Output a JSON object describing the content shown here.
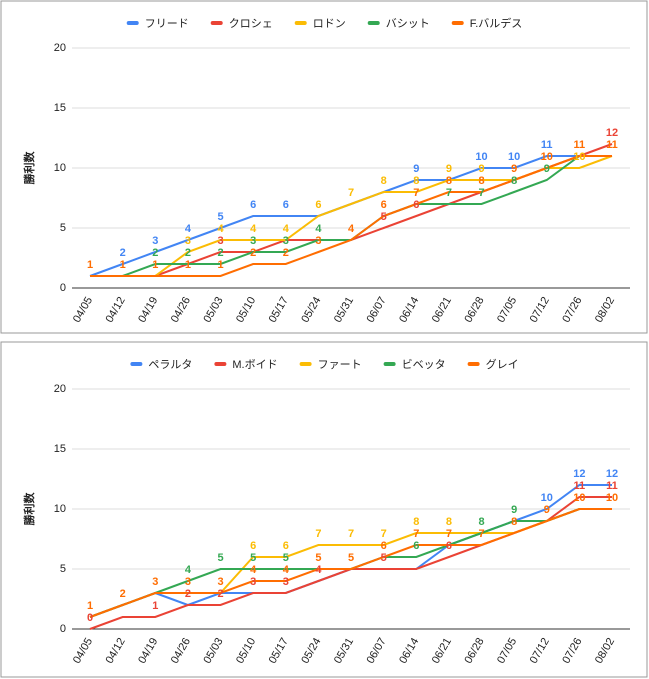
{
  "chart_data": [
    {
      "type": "line",
      "y_label": "勝利数",
      "categories": [
        "04/05",
        "04/12",
        "04/19",
        "04/26",
        "05/03",
        "05/10",
        "05/17",
        "05/24",
        "05/31",
        "06/07",
        "06/14",
        "06/21",
        "06/28",
        "07/05",
        "07/12",
        "07/26",
        "08/02"
      ],
      "ylim": [
        0,
        20
      ],
      "yticks": [
        0,
        5,
        10,
        15,
        20
      ],
      "grid": true,
      "legend": "top",
      "series": [
        {
          "name": "フリード",
          "color": "#4285f4",
          "values": [
            1,
            2,
            3,
            4,
            5,
            6,
            6,
            6,
            7,
            8,
            9,
            9,
            10,
            10,
            11,
            11,
            11
          ],
          "value_labels": [
            null,
            "2",
            "3",
            "4",
            "5",
            "6",
            "6",
            null,
            null,
            null,
            "9",
            null,
            "10",
            "10",
            "11",
            null,
            null
          ]
        },
        {
          "name": "クロシェ",
          "color": "#ea4335",
          "values": [
            1,
            1,
            1,
            2,
            3,
            3,
            4,
            4,
            4,
            5,
            6,
            7,
            8,
            9,
            10,
            11,
            12
          ],
          "value_labels": [
            null,
            null,
            null,
            null,
            "3",
            null,
            null,
            null,
            null,
            "5",
            "6",
            null,
            null,
            null,
            null,
            null,
            "12"
          ]
        },
        {
          "name": "ロドン",
          "color": "#fbbc04",
          "values": [
            1,
            1,
            1,
            3,
            4,
            4,
            4,
            6,
            7,
            8,
            8,
            9,
            9,
            9,
            10,
            10,
            11
          ],
          "value_labels": [
            null,
            null,
            null,
            "3",
            "4",
            "4",
            "4",
            "6",
            "7",
            "8",
            "8",
            "9",
            "9",
            null,
            null,
            "10",
            null
          ]
        },
        {
          "name": "バシット",
          "color": "#34a853",
          "values": [
            1,
            1,
            2,
            2,
            2,
            3,
            3,
            4,
            4,
            6,
            7,
            7,
            7,
            8,
            9,
            11,
            11
          ],
          "value_labels": [
            null,
            null,
            "2",
            "2",
            "2",
            "3",
            "3",
            "4",
            null,
            null,
            null,
            "7",
            "7",
            "8",
            "9",
            null,
            null
          ]
        },
        {
          "name": "F.バルデス",
          "color": "#ff6d01",
          "values": [
            1,
            1,
            1,
            1,
            1,
            2,
            2,
            3,
            4,
            6,
            7,
            8,
            8,
            9,
            10,
            11,
            11
          ],
          "value_labels": [
            "1",
            "1",
            "1",
            "1",
            "1",
            "2",
            "2",
            "3",
            "4",
            "6",
            "7",
            "8",
            "8",
            "9",
            "10",
            "11",
            "11"
          ]
        }
      ]
    },
    {
      "type": "line",
      "y_label": "勝利数",
      "categories": [
        "04/05",
        "04/12",
        "04/19",
        "04/26",
        "05/03",
        "05/10",
        "05/17",
        "05/24",
        "05/31",
        "06/07",
        "06/14",
        "06/21",
        "06/28",
        "07/05",
        "07/12",
        "07/26",
        "08/02"
      ],
      "ylim": [
        0,
        20
      ],
      "yticks": [
        0,
        5,
        10,
        15,
        20
      ],
      "grid": true,
      "legend": "top",
      "series": [
        {
          "name": "ペラルタ",
          "color": "#4285f4",
          "values": [
            1,
            2,
            3,
            2,
            3,
            3,
            3,
            4,
            5,
            5,
            5,
            7,
            8,
            9,
            10,
            12,
            12
          ],
          "value_labels": [
            null,
            null,
            null,
            null,
            null,
            null,
            null,
            null,
            null,
            null,
            null,
            null,
            null,
            null,
            "10",
            "12",
            "12"
          ]
        },
        {
          "name": "M.ボイド",
          "color": "#ea4335",
          "values": [
            0,
            1,
            1,
            2,
            2,
            3,
            3,
            4,
            5,
            5,
            5,
            6,
            7,
            8,
            9,
            11,
            11
          ],
          "value_labels": [
            "0",
            null,
            "1",
            "2",
            "2",
            "3",
            "3",
            "4",
            null,
            "5",
            null,
            "6",
            null,
            null,
            null,
            "11",
            "11"
          ]
        },
        {
          "name": "ファート",
          "color": "#fbbc04",
          "values": [
            1,
            2,
            3,
            3,
            3,
            6,
            6,
            7,
            7,
            7,
            8,
            8,
            8,
            8,
            9,
            10,
            10
          ],
          "value_labels": [
            null,
            null,
            null,
            null,
            null,
            "6",
            "6",
            "7",
            "7",
            "7",
            "8",
            "8",
            null,
            null,
            null,
            null,
            null
          ]
        },
        {
          "name": "ビベッタ",
          "color": "#34a853",
          "values": [
            1,
            2,
            3,
            4,
            5,
            5,
            5,
            5,
            5,
            6,
            6,
            7,
            8,
            9,
            9,
            10,
            10
          ],
          "value_labels": [
            null,
            null,
            null,
            "4",
            "5",
            "5",
            "5",
            null,
            null,
            null,
            "6",
            null,
            "8",
            "9",
            null,
            null,
            null
          ]
        },
        {
          "name": "グレイ",
          "color": "#ff6d01",
          "values": [
            1,
            2,
            3,
            3,
            3,
            4,
            4,
            5,
            5,
            6,
            7,
            7,
            7,
            8,
            9,
            10,
            10
          ],
          "value_labels": [
            "1",
            "2",
            "3",
            "3",
            "3",
            "4",
            "4",
            "5",
            "5",
            "6",
            "7",
            "7",
            "7",
            "8",
            "9",
            "10",
            "10"
          ]
        }
      ]
    }
  ]
}
